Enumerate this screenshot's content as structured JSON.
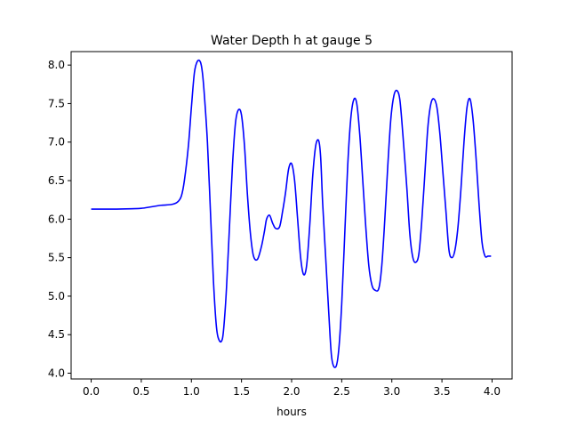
{
  "chart_data": {
    "type": "line",
    "title": "Water Depth h at gauge 5",
    "xlabel": "hours",
    "ylabel": "",
    "xlim": [
      -0.2,
      4.2
    ],
    "ylim": [
      3.925,
      8.175
    ],
    "xticks": [
      0.0,
      0.5,
      1.0,
      1.5,
      2.0,
      2.5,
      3.0,
      3.5,
      4.0
    ],
    "xtick_labels": [
      "0.0",
      "0.5",
      "1.0",
      "1.5",
      "2.0",
      "2.5",
      "3.0",
      "3.5",
      "4.0"
    ],
    "yticks": [
      4.0,
      4.5,
      5.0,
      5.5,
      6.0,
      6.5,
      7.0,
      7.5,
      8.0
    ],
    "ytick_labels": [
      "4.0",
      "4.5",
      "5.0",
      "5.5",
      "6.0",
      "6.5",
      "7.0",
      "7.5",
      "8.0"
    ],
    "grid": false,
    "series": [
      {
        "color": "#0000ff",
        "x": [
          0.0,
          0.2,
          0.4,
          0.5,
          0.6,
          0.7,
          0.8,
          0.86,
          0.9,
          0.93,
          0.97,
          1.0,
          1.03,
          1.06,
          1.09,
          1.11,
          1.13,
          1.16,
          1.19,
          1.22,
          1.25,
          1.28,
          1.31,
          1.33,
          1.35,
          1.38,
          1.41,
          1.44,
          1.47,
          1.5,
          1.53,
          1.56,
          1.59,
          1.62,
          1.66,
          1.7,
          1.73,
          1.75,
          1.78,
          1.81,
          1.84,
          1.88,
          1.91,
          1.94,
          1.97,
          2.0,
          2.03,
          2.06,
          2.09,
          2.12,
          2.15,
          2.18,
          2.21,
          2.24,
          2.27,
          2.29,
          2.31,
          2.34,
          2.37,
          2.4,
          2.44,
          2.47,
          2.5,
          2.53,
          2.56,
          2.59,
          2.62,
          2.65,
          2.68,
          2.71,
          2.74,
          2.77,
          2.8,
          2.83,
          2.87,
          2.9,
          2.93,
          2.96,
          2.99,
          3.02,
          3.05,
          3.08,
          3.11,
          3.15,
          3.18,
          3.21,
          3.24,
          3.27,
          3.3,
          3.33,
          3.36,
          3.39,
          3.42,
          3.45,
          3.48,
          3.51,
          3.54,
          3.57,
          3.6,
          3.63,
          3.66,
          3.69,
          3.72,
          3.75,
          3.78,
          3.81,
          3.84,
          3.87,
          3.9,
          3.93,
          3.96,
          3.99
        ],
        "y": [
          6.13,
          6.13,
          6.135,
          6.14,
          6.16,
          6.18,
          6.19,
          6.22,
          6.3,
          6.5,
          6.95,
          7.45,
          7.9,
          8.05,
          8.04,
          7.9,
          7.6,
          7.0,
          6.1,
          5.2,
          4.6,
          4.42,
          4.45,
          4.7,
          5.1,
          5.9,
          6.7,
          7.25,
          7.42,
          7.35,
          6.95,
          6.3,
          5.8,
          5.52,
          5.48,
          5.65,
          5.85,
          6.0,
          6.05,
          5.95,
          5.88,
          5.9,
          6.1,
          6.35,
          6.65,
          6.72,
          6.5,
          6.0,
          5.5,
          5.28,
          5.4,
          5.9,
          6.55,
          6.95,
          7.02,
          6.8,
          6.2,
          5.5,
          4.8,
          4.2,
          4.08,
          4.3,
          4.9,
          5.8,
          6.7,
          7.3,
          7.55,
          7.5,
          7.1,
          6.5,
          5.9,
          5.4,
          5.15,
          5.08,
          5.1,
          5.4,
          6.0,
          6.7,
          7.3,
          7.6,
          7.67,
          7.55,
          7.1,
          6.4,
          5.8,
          5.5,
          5.44,
          5.55,
          6.0,
          6.6,
          7.2,
          7.5,
          7.56,
          7.45,
          7.1,
          6.6,
          6.1,
          5.6,
          5.5,
          5.6,
          5.9,
          6.4,
          7.0,
          7.45,
          7.56,
          7.3,
          6.8,
          6.2,
          5.7,
          5.52,
          5.52,
          5.52
        ]
      }
    ]
  }
}
